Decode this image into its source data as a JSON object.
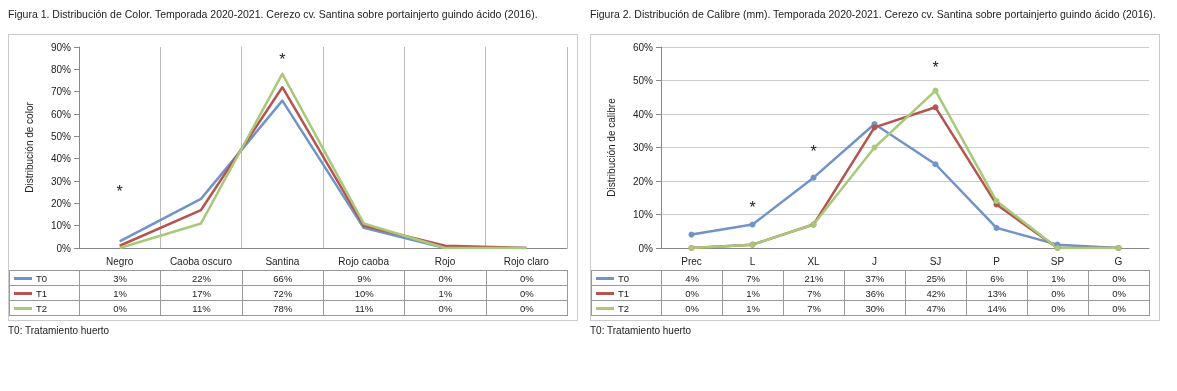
{
  "chart_data": [
    {
      "type": "line",
      "title": "Figura 1. Distribución de Color. Temporada 2020-2021. Cerezo cv. Santina sobre portainjerto guindo ácido (2016).",
      "ylabel": "Distribución de color",
      "categories": [
        "Negro",
        "Caoba oscuro",
        "Santina",
        "Rojo caoba",
        "Rojo",
        "Rojo claro"
      ],
      "series": [
        {
          "name": "T0",
          "color": "#7094c8",
          "values": [
            3,
            22,
            66,
            9,
            0,
            0
          ],
          "value_labels": [
            "3%",
            "22%",
            "66%",
            "9%",
            "0%",
            "0%"
          ]
        },
        {
          "name": "T1",
          "color": "#b5534f",
          "values": [
            1,
            17,
            72,
            10,
            1,
            0
          ],
          "value_labels": [
            "1%",
            "17%",
            "72%",
            "10%",
            "1%",
            "0%"
          ]
        },
        {
          "name": "T2",
          "color": "#a8c97a",
          "values": [
            0,
            11,
            78,
            11,
            0,
            0
          ],
          "value_labels": [
            "0%",
            "11%",
            "78%",
            "11%",
            "0%",
            "0%"
          ]
        }
      ],
      "ylim": [
        0,
        90
      ],
      "yticks": [
        {
          "value": 0,
          "label": "0%"
        },
        {
          "value": 10,
          "label": "10%"
        },
        {
          "value": 20,
          "label": "20%"
        },
        {
          "value": 30,
          "label": "30%"
        },
        {
          "value": 40,
          "label": "40%"
        },
        {
          "value": 50,
          "label": "50%"
        },
        {
          "value": 60,
          "label": "60%"
        },
        {
          "value": 70,
          "label": "70%"
        },
        {
          "value": 80,
          "label": "80%"
        },
        {
          "value": 90,
          "label": "90%"
        }
      ],
      "grid": "x",
      "legend": "bottom",
      "marker": "none",
      "annotations": [
        "*",
        "*",
        "T0: Tratamiento huerto"
      ]
    },
    {
      "type": "line",
      "title": "Figura 2. Distribución de Calibre (mm). Temporada 2020-2021. Cerezo cv. Santina sobre portainjerto guindo ácido (2016).",
      "ylabel": "Distribución de calibre",
      "categories": [
        "Prec",
        "L",
        "XL",
        "J",
        "SJ",
        "P",
        "SP",
        "G"
      ],
      "series": [
        {
          "name": "T0",
          "color": "#7094c8",
          "values": [
            4,
            7,
            21,
            37,
            25,
            6,
            1,
            0
          ],
          "value_labels": [
            "4%",
            "7%",
            "21%",
            "37%",
            "25%",
            "6%",
            "1%",
            "0%"
          ]
        },
        {
          "name": "T1",
          "color": "#b5534f",
          "values": [
            0,
            1,
            7,
            36,
            42,
            13,
            0,
            0
          ],
          "value_labels": [
            "0%",
            "1%",
            "7%",
            "36%",
            "42%",
            "13%",
            "0%",
            "0%"
          ]
        },
        {
          "name": "T2",
          "color": "#a8c97a",
          "values": [
            0,
            1,
            7,
            30,
            47,
            14,
            0,
            0
          ],
          "value_labels": [
            "0%",
            "1%",
            "7%",
            "30%",
            "47%",
            "14%",
            "0%",
            "0%"
          ]
        }
      ],
      "ylim": [
        0,
        60
      ],
      "yticks": [
        {
          "value": 0,
          "label": "0%"
        },
        {
          "value": 10,
          "label": "10%"
        },
        {
          "value": 20,
          "label": "20%"
        },
        {
          "value": 30,
          "label": "30%"
        },
        {
          "value": 40,
          "label": "40%"
        },
        {
          "value": 50,
          "label": "50%"
        },
        {
          "value": 60,
          "label": "60%"
        }
      ],
      "grid": "y",
      "legend": "bottom",
      "marker": "circle",
      "annotations": [
        "*",
        "*",
        "*",
        "T0: Tratamiento huerto"
      ]
    }
  ]
}
